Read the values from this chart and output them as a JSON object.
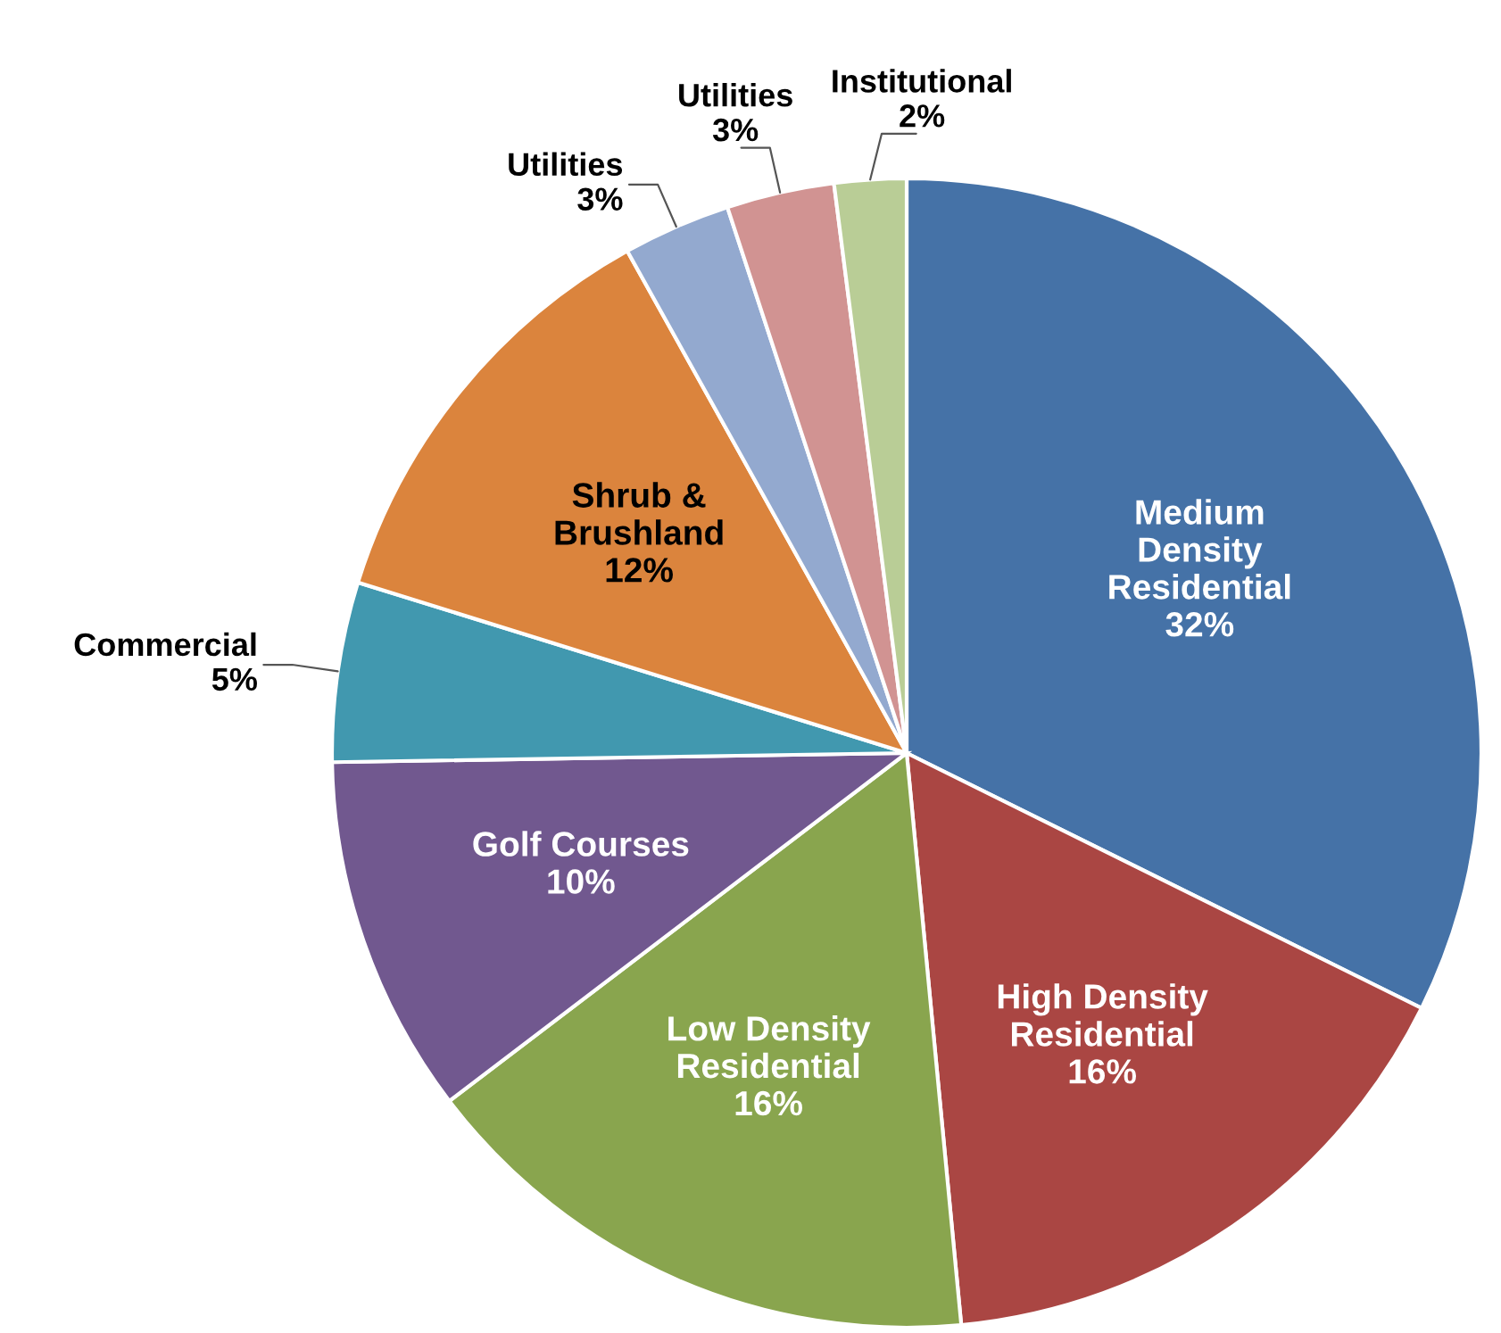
{
  "chart_data": {
    "type": "pie",
    "categories": [
      "Medium\nDensity\nResidential",
      "High Density\nResidential",
      "Low Density\nResidential",
      "Golf Courses",
      "Commercial",
      "Shrub &\nBrushland",
      "Utilities",
      "Utilities",
      "Institutional"
    ],
    "values": [
      32,
      16,
      16,
      10,
      5,
      12,
      3,
      3,
      2
    ],
    "colors": [
      "#4572a7",
      "#aa4643",
      "#89a54e",
      "#71588f",
      "#4198af",
      "#db843d",
      "#93a9cf",
      "#d19392",
      "#b9cd96"
    ],
    "value_labels": [
      "32%",
      "16%",
      "16%",
      "10%",
      "5%",
      "12%",
      "3%",
      "3%",
      "2%"
    ],
    "legend": false
  }
}
